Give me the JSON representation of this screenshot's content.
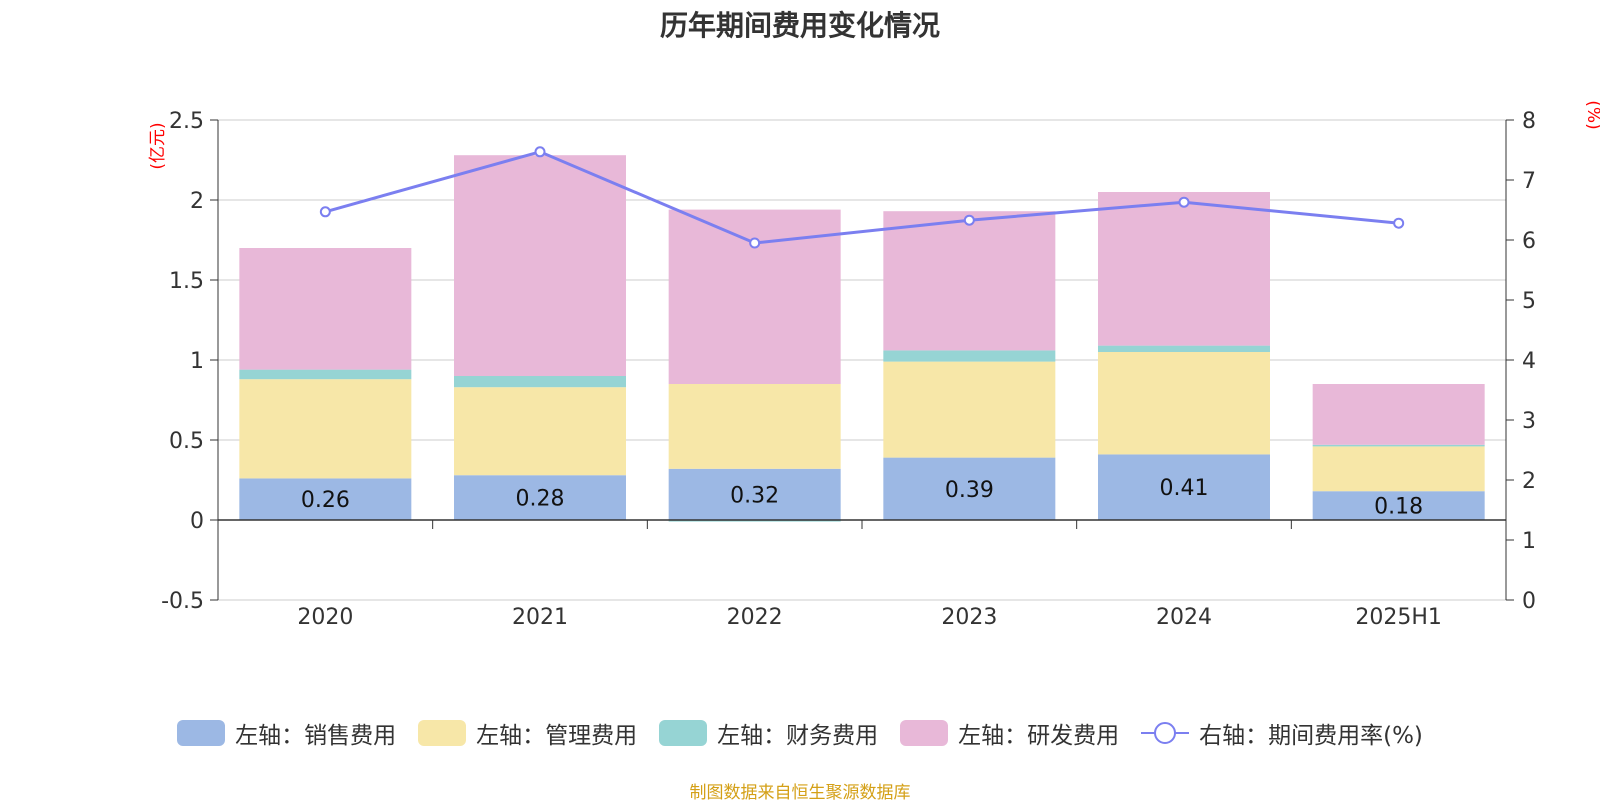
{
  "title": "历年期间费用变化情况",
  "source": "制图数据来自恒生聚源数据库",
  "colors": {
    "sales": "#9cb8e4",
    "admin": "#f7e7a8",
    "finance": "#96d4d4",
    "rd": "#e8b8d8",
    "rate": "#7b7ff0",
    "unit": "#ff0000",
    "source": "#d4a017"
  },
  "legend": [
    {
      "label": "左轴：销售费用",
      "key": "sales"
    },
    {
      "label": "左轴：管理费用",
      "key": "admin"
    },
    {
      "label": "左轴：财务费用",
      "key": "finance"
    },
    {
      "label": "左轴：研发费用",
      "key": "rd"
    },
    {
      "label": "右轴：期间费用率(%)",
      "key": "rate"
    }
  ],
  "chart_data": {
    "type": "bar",
    "stacked": true,
    "categories": [
      "2020",
      "2021",
      "2022",
      "2023",
      "2024",
      "2025H1"
    ],
    "y_left": {
      "unit": "(亿元)",
      "range": [
        -0.5,
        2.5
      ],
      "ticks": [
        "-0.5",
        "0",
        "0.5",
        "1",
        "1.5",
        "2",
        "2.5"
      ]
    },
    "y_right": {
      "unit": "(%)",
      "range": [
        0,
        8
      ],
      "ticks": [
        "0",
        "1",
        "2",
        "3",
        "4",
        "5",
        "6",
        "7",
        "8"
      ]
    },
    "series": [
      {
        "name": "左轴：销售费用",
        "key": "sales",
        "axis": "left",
        "values": [
          0.26,
          0.28,
          0.32,
          0.39,
          0.41,
          0.18
        ],
        "labels": [
          "0.26",
          "0.28",
          "0.32",
          "0.39",
          "0.41",
          "0.18"
        ]
      },
      {
        "name": "左轴：管理费用",
        "key": "admin",
        "axis": "left",
        "values": [
          0.62,
          0.55,
          0.53,
          0.6,
          0.64,
          0.28
        ]
      },
      {
        "name": "左轴：财务费用",
        "key": "finance",
        "axis": "left",
        "values": [
          0.06,
          0.07,
          -0.01,
          0.07,
          0.04,
          0.01
        ]
      },
      {
        "name": "左轴：研发费用",
        "key": "rd",
        "axis": "left",
        "values": [
          0.76,
          1.38,
          1.09,
          0.87,
          0.96,
          0.38
        ]
      },
      {
        "name": "右轴：期间费用率(%)",
        "key": "rate",
        "axis": "right",
        "type": "line",
        "values": [
          6.47,
          7.47,
          5.95,
          6.33,
          6.63,
          6.28
        ]
      }
    ],
    "grid": true
  }
}
